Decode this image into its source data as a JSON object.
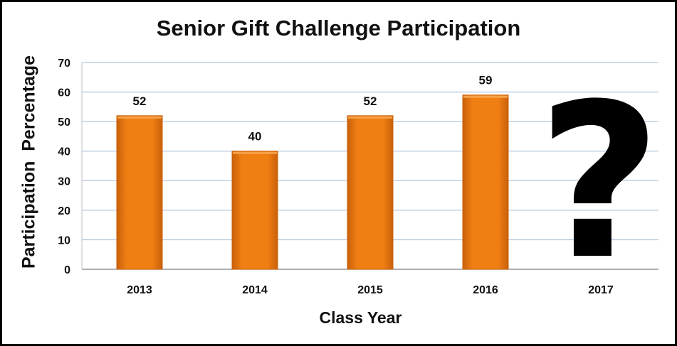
{
  "chart_data": {
    "type": "bar",
    "title": "Senior Gift Challenge Participation",
    "xlabel": "Class Year",
    "ylabel": "Participation  Percentage",
    "categories": [
      "2013",
      "2014",
      "2015",
      "2016",
      "2017"
    ],
    "values": [
      52,
      40,
      52,
      59,
      null
    ],
    "data_labels": [
      "52",
      "40",
      "52",
      "59",
      ""
    ],
    "unknown_marker": "?",
    "ylim": [
      0,
      70
    ],
    "yticks": [
      0,
      10,
      20,
      30,
      40,
      50,
      60,
      70
    ],
    "grid": true,
    "legend": "none",
    "colors": {
      "bar": "#f07f13",
      "bar_dark": "#c9600a",
      "bar_light": "#f7a24a",
      "grid": "#b7c8e0",
      "border": "#000000"
    }
  }
}
